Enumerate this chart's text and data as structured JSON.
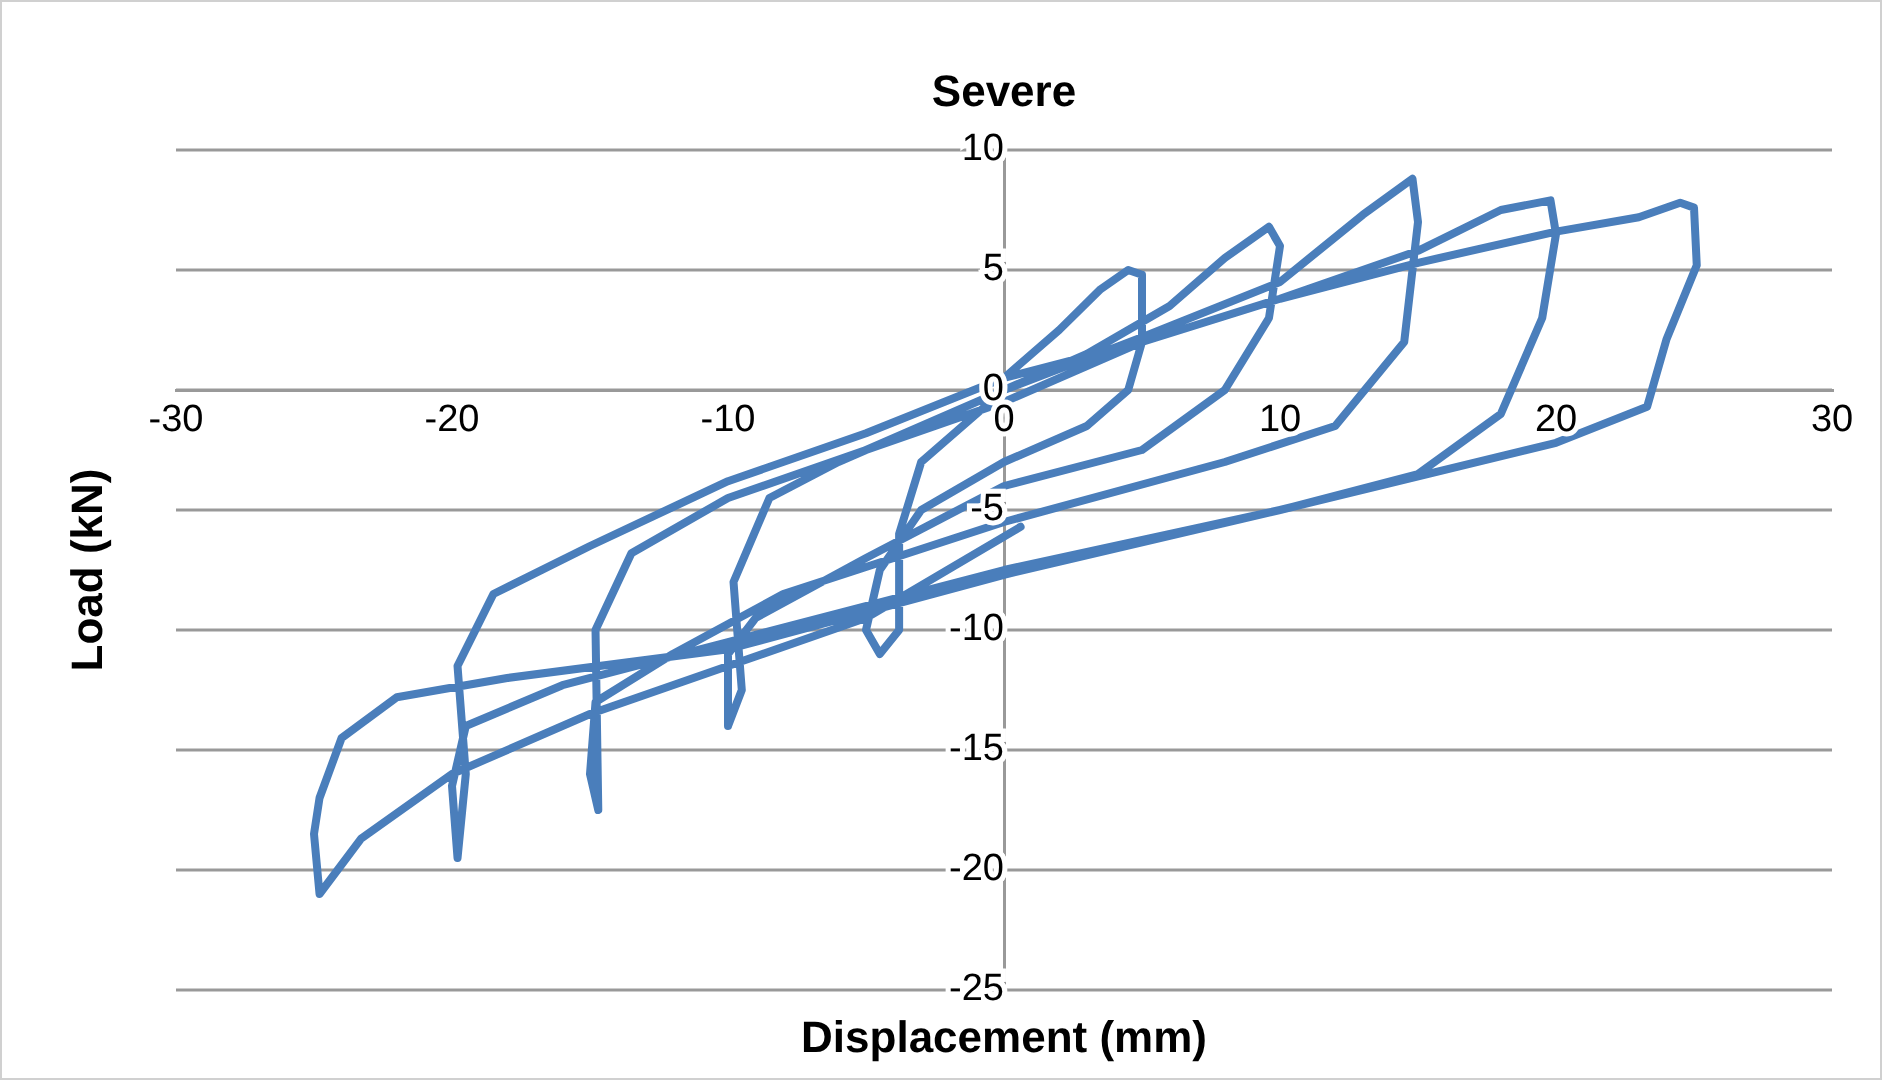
{
  "chart_data": {
    "type": "line",
    "title": "Severe",
    "xlabel": "Displacement (mm)",
    "ylabel": "Load (kN)",
    "xlim": [
      -30,
      30
    ],
    "xticks": [
      -30,
      -20,
      -10,
      0,
      10,
      20,
      30
    ],
    "ylim": [
      -25,
      10
    ],
    "yticks": [
      -25,
      -20,
      -15,
      -10,
      -5,
      0,
      5,
      10
    ],
    "grid": "y",
    "legend": false,
    "marker": "none",
    "line_style": "solid",
    "series": [
      {
        "color": "#4a7ebb",
        "x": [
          0,
          2,
          3.5,
          4.5,
          5,
          5,
          4.5,
          3,
          0,
          -3,
          -4.5,
          -5,
          -4.5,
          -3.8,
          -3.8,
          -3,
          -1,
          0,
          3,
          6,
          8,
          9.6,
          10,
          9.6,
          8,
          5,
          0,
          -5,
          -9,
          -10,
          -10,
          -9.5,
          -9.8,
          -8.5,
          -6,
          -3,
          0,
          5,
          10,
          13,
          14.8,
          15,
          14.5,
          12,
          8,
          0,
          -8,
          -12,
          -14.8,
          -15,
          -14.7,
          -14.8,
          -13.5,
          -10,
          -5,
          0,
          5,
          10,
          15,
          18,
          19.8,
          20,
          19.5,
          18,
          15,
          10,
          0,
          -10,
          -16,
          -19.5,
          -20,
          -19.8,
          -19.5,
          -19.8,
          -18.5,
          -15,
          -10,
          -5,
          0,
          5,
          10,
          15,
          20,
          23,
          24.5,
          25,
          25.1,
          24,
          23.3,
          20,
          10,
          0,
          -10,
          -18,
          -22,
          -24,
          -24.8,
          -25,
          -24.8,
          -23.3,
          -20,
          -15,
          -10,
          -5,
          0.6
        ],
        "values": [
          0.5,
          2.5,
          4.2,
          5,
          4.8,
          2,
          0,
          -1.5,
          -3,
          -5,
          -7.5,
          -10,
          -11,
          -10,
          -6,
          -3,
          -1,
          0,
          1.5,
          3.5,
          5.5,
          6.8,
          6,
          3,
          0,
          -2.5,
          -4,
          -7,
          -9.5,
          -11,
          -14,
          -12.5,
          -8,
          -4.5,
          -3,
          -1.5,
          0,
          2.2,
          4.5,
          7.3,
          8.8,
          7,
          2,
          -1.5,
          -3,
          -5.5,
          -8.5,
          -11,
          -13,
          -16,
          -17.5,
          -10,
          -6.8,
          -4.5,
          -2.5,
          -0.5,
          2,
          3.8,
          5.8,
          7.5,
          7.9,
          6.5,
          3,
          -1,
          -3.5,
          -5,
          -7.5,
          -10.5,
          -12.3,
          -14,
          -16.5,
          -19.5,
          -16,
          -11.5,
          -8.5,
          -6.5,
          -3.8,
          -1.8,
          0.5,
          2,
          3.8,
          5.3,
          6.6,
          7.2,
          7.8,
          7.6,
          5.2,
          2.1,
          -0.7,
          -2.2,
          -5,
          -7.7,
          -10.8,
          -12,
          -12.8,
          -14.5,
          -17,
          -18.5,
          -21,
          -18.7,
          -16,
          -13.5,
          -11.5,
          -9.5,
          -5.7
        ]
      }
    ]
  }
}
